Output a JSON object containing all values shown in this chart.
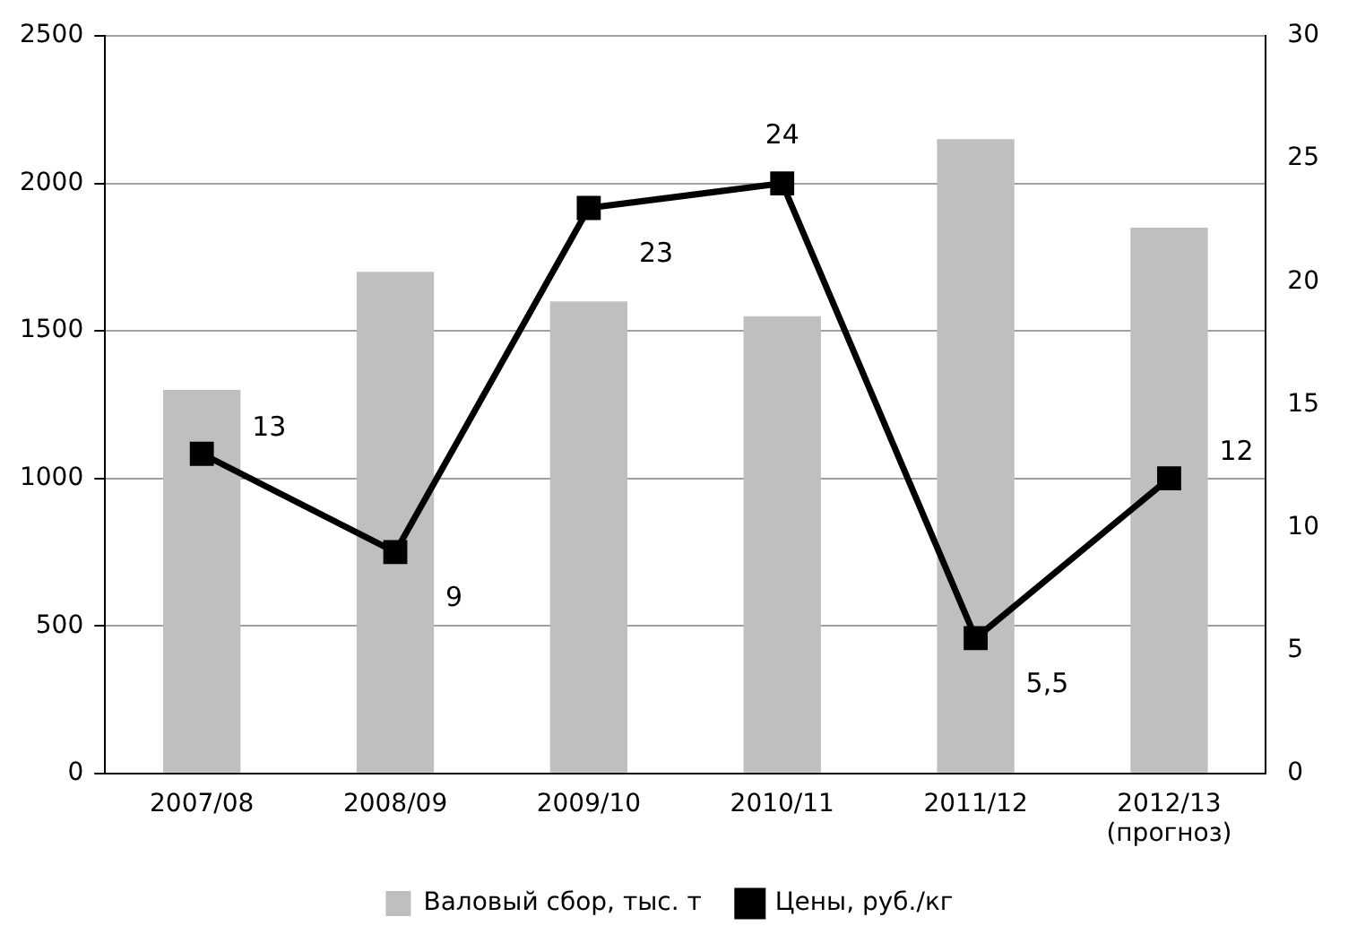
{
  "chart_data": {
    "type": "bar",
    "categories": [
      "2007/08",
      "2008/09",
      "2009/10",
      "2010/11",
      "2011/12",
      "2012/13\n(прогноз)"
    ],
    "series": [
      {
        "name": "Валовый сбор, тыс. т",
        "color": "#bfbfbf",
        "values": [
          1300,
          1700,
          1600,
          1550,
          2150,
          1850
        ]
      },
      {
        "name": "Цены, руб./кг",
        "type": "line",
        "axis": "y2",
        "color": "#000000",
        "marker": "square",
        "values": [
          13,
          9,
          23,
          24,
          5.5,
          12
        ],
        "value_labels": [
          "13",
          "9",
          "23",
          "24",
          "5,5",
          "12"
        ]
      }
    ],
    "ylim": [
      0,
      2500
    ],
    "yticks": [
      0,
      500,
      1000,
      1500,
      2000,
      2500
    ],
    "y2lim": [
      0,
      30
    ],
    "y2ticks": [
      0,
      5,
      10,
      15,
      20,
      25,
      30
    ],
    "grid": "y",
    "legend": "bottom"
  }
}
